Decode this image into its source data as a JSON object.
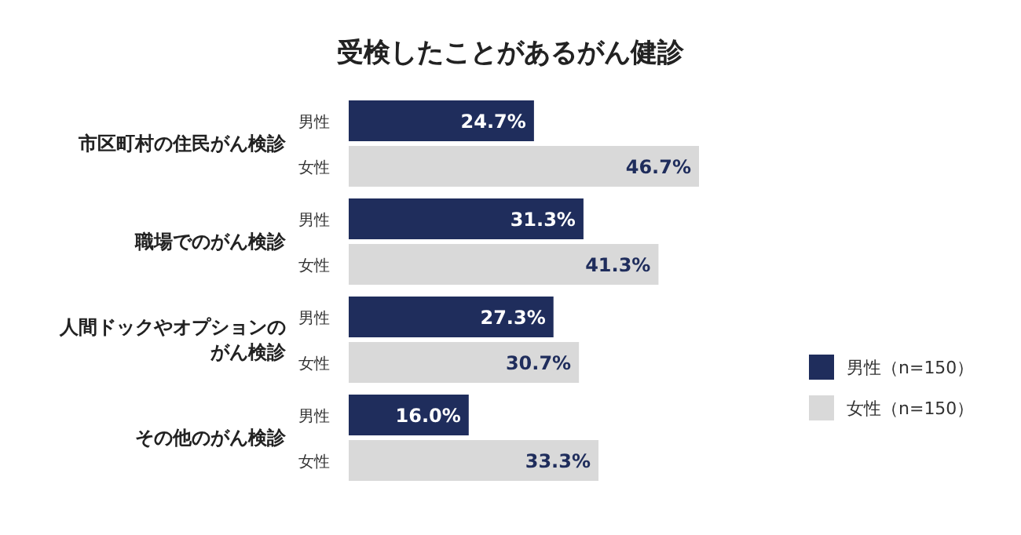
{
  "chart_data": {
    "type": "bar",
    "orientation": "horizontal",
    "title": "受検したことがあるがん健診",
    "categories": [
      "市区町村の住民がん検診",
      "職場でのがん検診",
      "人間ドックやオプションのがん検診",
      "その他のがん検診"
    ],
    "series": [
      {
        "name": "男性（n=150）",
        "color": "#1f2d5c",
        "values": [
          24.7,
          31.3,
          27.3,
          16.0
        ],
        "value_labels": [
          "24.7%",
          "31.3%",
          "27.3%",
          "16.0%"
        ]
      },
      {
        "name": "女性（n=150）",
        "color": "#d9d9d9",
        "values": [
          46.7,
          41.3,
          30.7,
          33.3
        ],
        "value_labels": [
          "46.7%",
          "41.3%",
          "30.7%",
          "33.3%"
        ]
      }
    ],
    "annotations": [
      "男性",
      "女性",
      "男性",
      "女性",
      "男性",
      "女性",
      "男性",
      "女性"
    ],
    "legend": "right",
    "grid": false
  }
}
